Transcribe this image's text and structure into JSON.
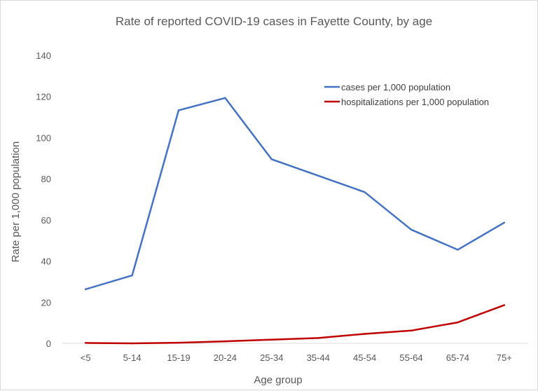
{
  "chart_data": {
    "type": "line",
    "title": "Rate of reported COVID-19 cases in Fayette County, by age",
    "xlabel": "Age group",
    "ylabel": "Rate per 1,000 population",
    "categories": [
      "<5",
      "5-14",
      "15-19",
      "20-24",
      "25-34",
      "35-44",
      "45-54",
      "55-64",
      "65-74",
      "75+"
    ],
    "ylim": [
      0,
      140
    ],
    "yticks": [
      0,
      20,
      40,
      60,
      80,
      100,
      120,
      140
    ],
    "grid": false,
    "legend_position": "top-right",
    "series": [
      {
        "name": "cases per 1,000 population",
        "color": "#4472C4",
        "values": [
          26.3,
          33.0,
          113.3,
          119.3,
          89.5,
          81.5,
          73.5,
          55.3,
          45.5,
          58.7
        ]
      },
      {
        "name": "hospitalizations per 1,000 population",
        "color": "#C00000",
        "values": [
          0.2,
          0.0,
          0.3,
          1.0,
          1.8,
          2.6,
          4.6,
          6.2,
          10.2,
          18.6
        ]
      }
    ]
  }
}
